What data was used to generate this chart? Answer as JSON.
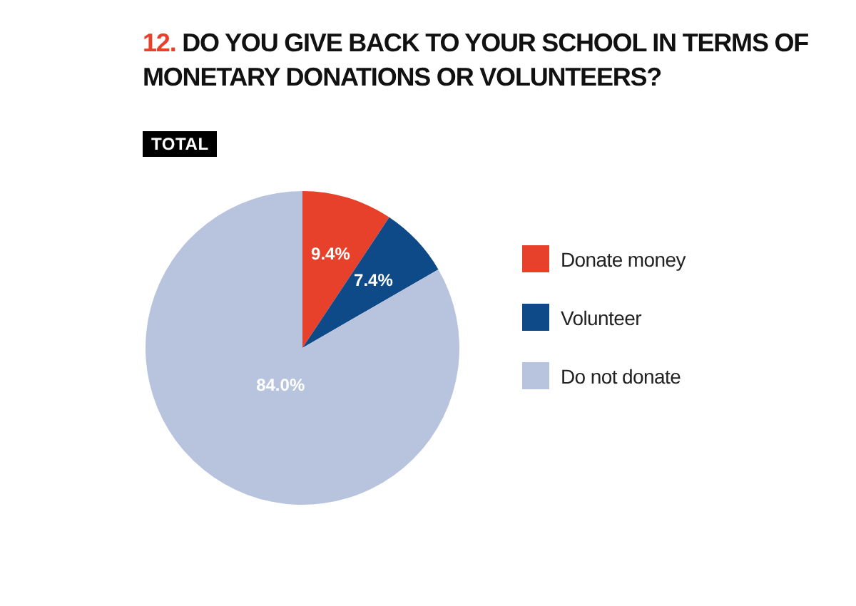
{
  "chart_data": {
    "type": "pie",
    "title": "12. DO YOU GIVE BACK TO YOUR SCHOOL IN TERMS OF MONETARY DONATIONS OR VOLUNTEERS?",
    "subtitle": "TOTAL",
    "categories": [
      "Donate money",
      "Volunteer",
      "Do not donate"
    ],
    "values": [
      9.4,
      7.4,
      84.0
    ],
    "colors": [
      "#e8412b",
      "#0d4a87",
      "#b8c4de"
    ],
    "value_labels": [
      "9.4%",
      "7.4%",
      "84.0%"
    ],
    "legend": "right"
  }
}
